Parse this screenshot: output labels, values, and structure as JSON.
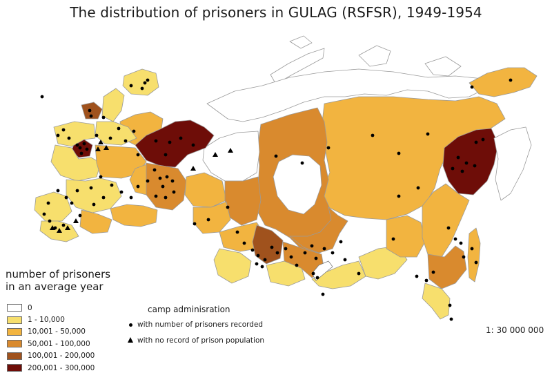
{
  "title": "The distribution of prisoners in GULAG (RSFSR), 1949-1954",
  "legend": {
    "title_line1": "number of prisoners",
    "title_line2": "in an average year",
    "classes": [
      {
        "label": "0",
        "color": "#ffffff"
      },
      {
        "label": "1 - 10,000",
        "color": "#f7df6d"
      },
      {
        "label": "10,001 - 50,000",
        "color": "#f2b440"
      },
      {
        "label": "50,001 - 100,000",
        "color": "#d98a2e"
      },
      {
        "label": "100,001 - 200,000",
        "color": "#a0521d"
      },
      {
        "label": "200,001 - 300,000",
        "color": "#6e0d08"
      }
    ]
  },
  "camp_legend": {
    "title": "camp adminisration",
    "dot_label": "with number of prisoners recorded",
    "triangle_label": "with no record of prison population"
  },
  "scale": "1: 30 000 000",
  "colors": {
    "border": "#9a9a9a",
    "marker": "#000000"
  }
}
